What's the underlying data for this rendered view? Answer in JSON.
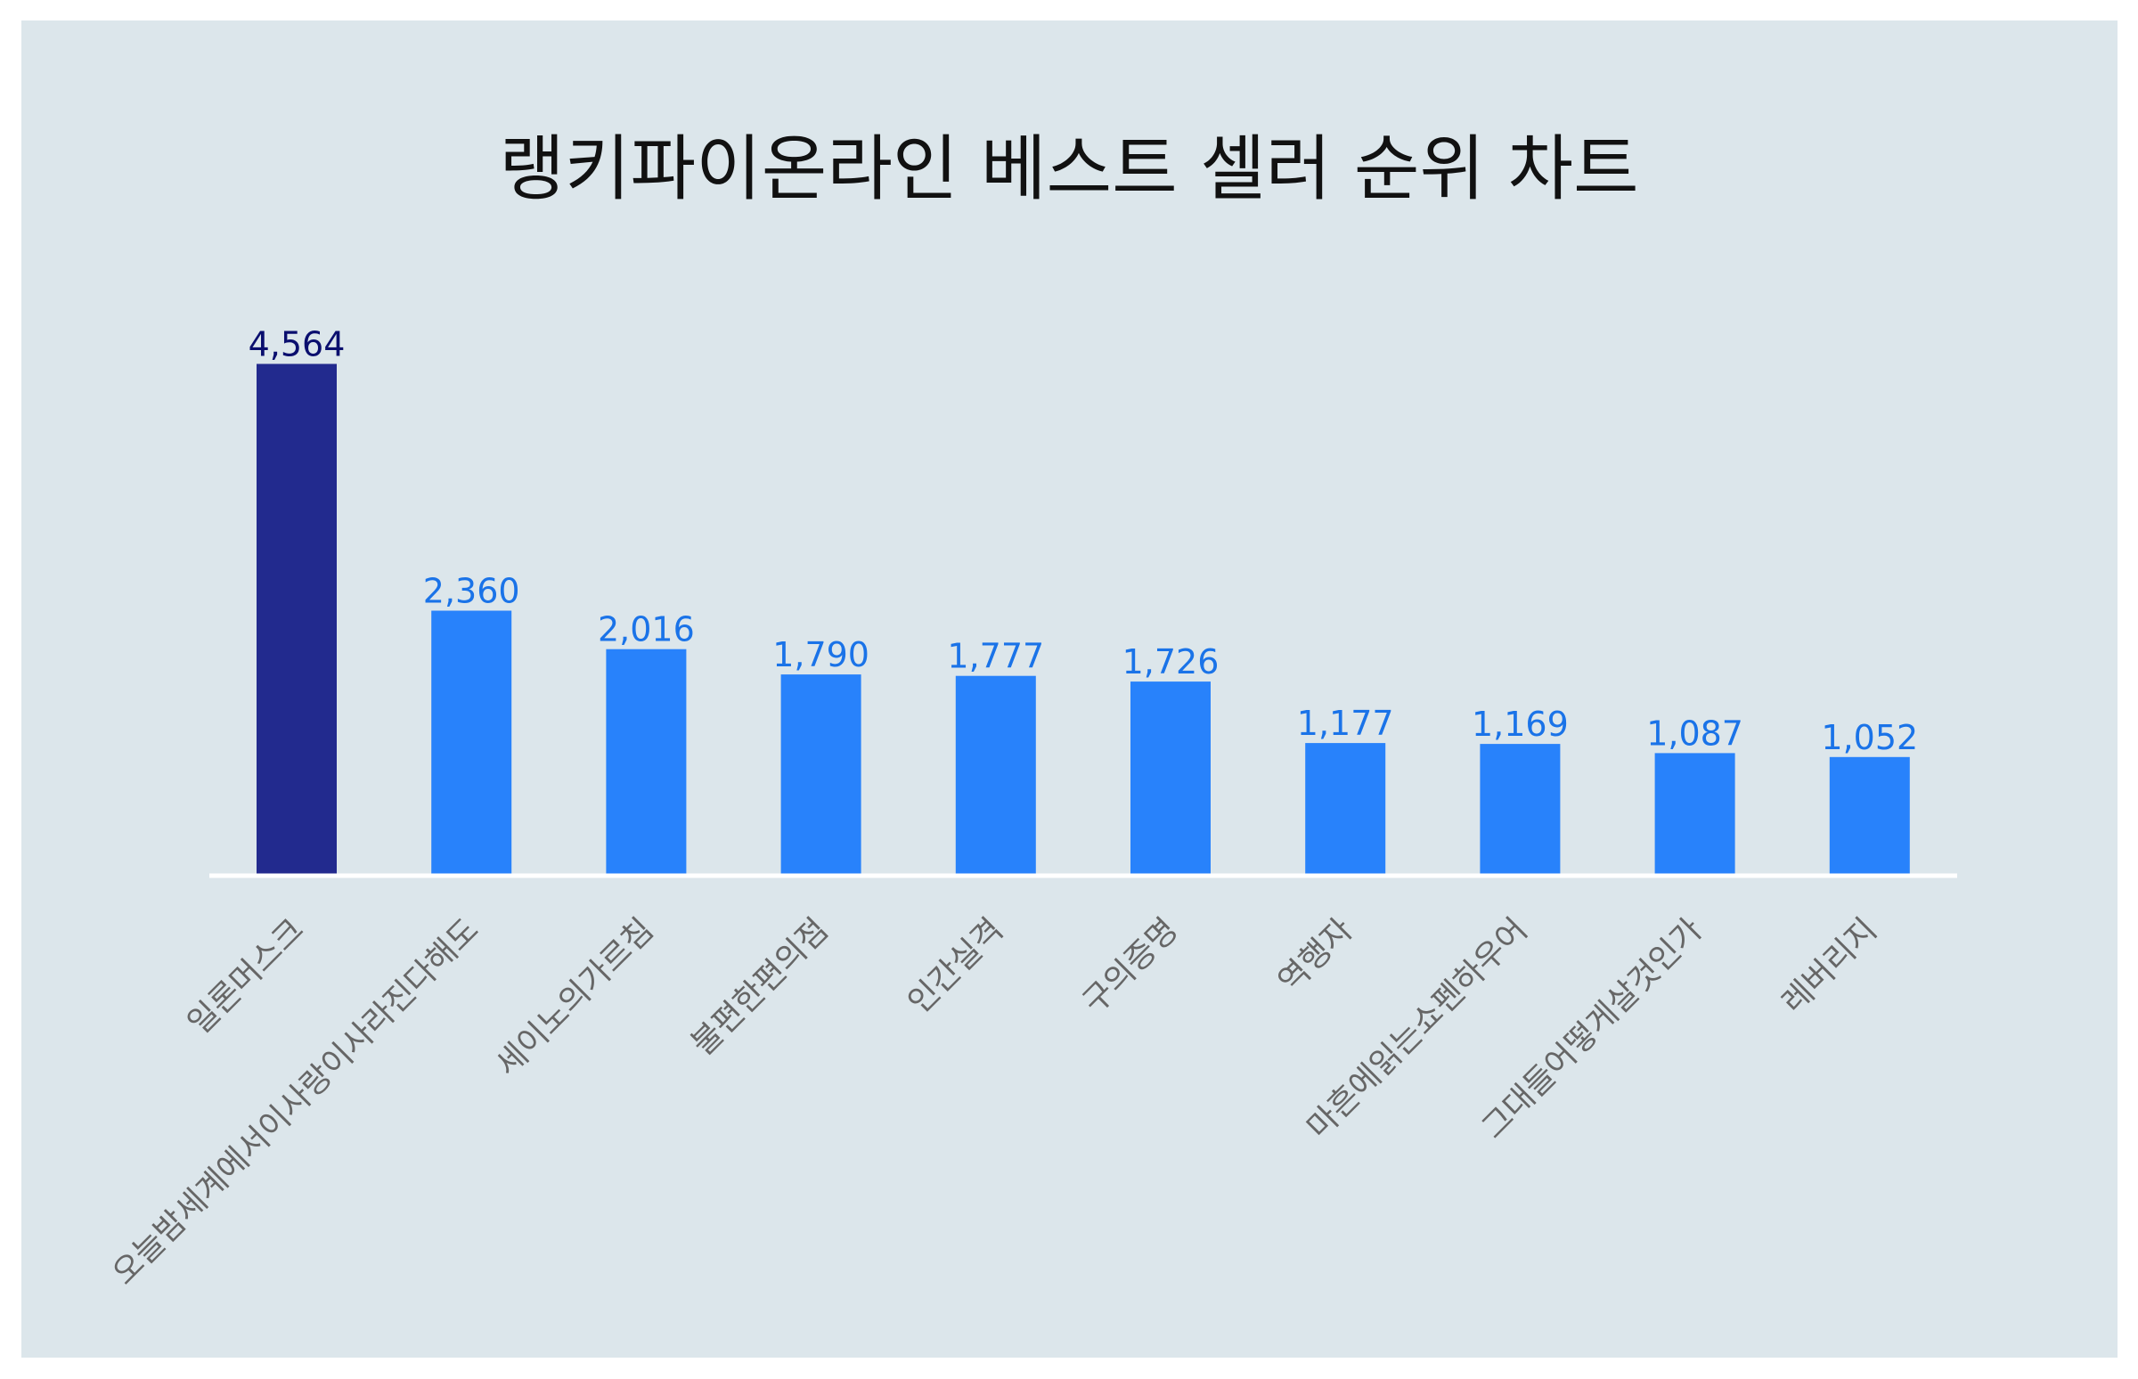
{
  "chart_data": {
    "type": "bar",
    "title": "랭키파이온라인 베스트 셀러 순위 차트",
    "xlabel": "",
    "ylabel": "",
    "ylim": [
      0,
      5000
    ],
    "grid": false,
    "categories": [
      "일론머스크",
      "오늘밤세계에서이사랑이사라진다해도",
      "세이노의가르침",
      "불편한편의점",
      "인간실격",
      "구의증명",
      "역행자",
      "마흔에읽는쇼펜하우어",
      "그대들어떻게살것인가",
      "레버리지"
    ],
    "values": [
      4564,
      2360,
      2016,
      1790,
      1777,
      1726,
      1177,
      1169,
      1087,
      1052
    ],
    "value_labels": [
      "4,564",
      "2,360",
      "2,016",
      "1,790",
      "1,777",
      "1,726",
      "1,177",
      "1,169",
      "1,087",
      "1,052"
    ],
    "colors": {
      "top_bar": "#222a8e",
      "bar": "#2882fb",
      "top_label": "#0a0e6e",
      "label": "#1a73e8",
      "category_text": "#666666",
      "background": "#dce6eb",
      "baseline": "#ffffff"
    }
  }
}
